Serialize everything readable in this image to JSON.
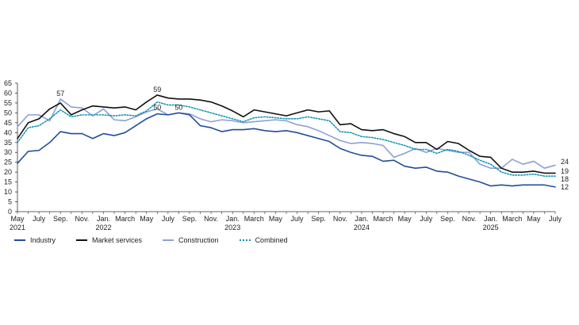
{
  "chart_data": {
    "type": "line",
    "ylim": [
      0,
      65
    ],
    "yticks": [
      0,
      5,
      10,
      15,
      20,
      25,
      30,
      35,
      40,
      45,
      50,
      55,
      60,
      65
    ],
    "grid": false,
    "legend_position": "bottom-left",
    "x_start": "2021-05",
    "x_months": 51,
    "x_tick_labels": [
      {
        "month": "2021-05",
        "lines": [
          "May",
          "2021"
        ]
      },
      {
        "month": "2021-07",
        "lines": [
          "July"
        ]
      },
      {
        "month": "2021-09",
        "lines": [
          "Sep."
        ]
      },
      {
        "month": "2021-11",
        "lines": [
          "Nov."
        ]
      },
      {
        "month": "2022-01",
        "lines": [
          "Jan.",
          "2022"
        ]
      },
      {
        "month": "2022-03",
        "lines": [
          "March"
        ]
      },
      {
        "month": "2022-05",
        "lines": [
          "May"
        ]
      },
      {
        "month": "2022-07",
        "lines": [
          "July"
        ]
      },
      {
        "month": "2022-09",
        "lines": [
          "Sep."
        ]
      },
      {
        "month": "2022-11",
        "lines": [
          "Nov."
        ]
      },
      {
        "month": "2023-01",
        "lines": [
          "Jan.",
          "2023"
        ]
      },
      {
        "month": "2023-03",
        "lines": [
          "March"
        ]
      },
      {
        "month": "2023-05",
        "lines": [
          "May"
        ]
      },
      {
        "month": "2023-07",
        "lines": [
          "July"
        ]
      },
      {
        "month": "2023-09",
        "lines": [
          "Sep."
        ]
      },
      {
        "month": "2023-11",
        "lines": [
          "Nov."
        ]
      },
      {
        "month": "2024-01",
        "lines": [
          "Jan.",
          "2024"
        ]
      },
      {
        "month": "2024-03",
        "lines": [
          "March"
        ]
      },
      {
        "month": "2024-05",
        "lines": [
          "May"
        ]
      },
      {
        "month": "2024-07",
        "lines": [
          "July"
        ]
      },
      {
        "month": "2024-09",
        "lines": [
          "Sep."
        ]
      },
      {
        "month": "2024-11",
        "lines": [
          "Nov."
        ]
      },
      {
        "month": "2025-01",
        "lines": [
          "Jan.",
          "2025"
        ]
      },
      {
        "month": "2025-03",
        "lines": [
          "March"
        ]
      },
      {
        "month": "2025-05",
        "lines": [
          "May"
        ]
      },
      {
        "month": "2025-07",
        "lines": [
          "July"
        ]
      }
    ],
    "series": [
      {
        "name": "Industry",
        "color": "#1f4e9c",
        "style": "solid",
        "values": [
          24.5,
          30.5,
          31,
          35,
          40.5,
          39.5,
          39.5,
          37,
          39.5,
          38.5,
          40,
          43.5,
          47,
          49.5,
          49,
          50,
          49,
          43.5,
          42.5,
          40.5,
          41.5,
          41.5,
          42,
          41,
          40.5,
          41,
          40,
          38.5,
          37,
          35.5,
          32,
          30,
          28.5,
          28,
          25.5,
          26,
          23,
          22,
          22.5,
          20.5,
          20,
          18,
          16.5,
          15,
          13,
          13.5,
          13,
          13.5,
          13.5,
          13.5,
          12.5
        ]
      },
      {
        "name": "Market services",
        "color": "#111111",
        "style": "solid",
        "values": [
          37,
          45,
          47,
          52,
          55,
          49,
          51.5,
          53.5,
          53,
          52.5,
          53,
          51.5,
          55.5,
          59,
          57.5,
          57,
          57,
          56.5,
          55.5,
          53.5,
          51,
          48,
          51.5,
          50.5,
          49.5,
          48.5,
          50,
          51.5,
          50.5,
          51,
          44,
          44.5,
          41.5,
          41,
          41.5,
          39.5,
          38,
          35,
          35,
          31.5,
          35.5,
          34.5,
          31,
          28,
          27.5,
          22,
          20,
          20,
          20.5,
          19.5,
          19.5
        ]
      },
      {
        "name": "Construction",
        "color": "#8e9fd5",
        "style": "solid",
        "values": [
          43,
          49,
          49,
          46,
          57,
          53,
          52.5,
          48.5,
          52,
          46.5,
          46,
          48,
          50.5,
          52,
          49,
          50,
          49.5,
          47,
          45.5,
          46.5,
          46,
          45,
          45.5,
          46,
          46.5,
          46,
          44,
          43,
          41,
          38.5,
          36,
          34.5,
          35,
          34.5,
          33.5,
          27.5,
          29.5,
          32,
          30,
          32,
          31,
          30,
          30,
          24,
          22,
          22,
          26.5,
          24,
          25.5,
          22,
          23.5
        ]
      },
      {
        "name": "Combined",
        "color": "#1493b4",
        "style": "dotted",
        "values": [
          35,
          42.5,
          43.5,
          47,
          51.5,
          48,
          49,
          49,
          49,
          48.5,
          49,
          48.5,
          51,
          55.5,
          54,
          54,
          53,
          51.5,
          50,
          48.5,
          47,
          45.5,
          47.5,
          48,
          47.5,
          47,
          47,
          48,
          47,
          46,
          40.5,
          40,
          38,
          37.5,
          36.5,
          35,
          33.5,
          31.5,
          31.5,
          29.5,
          31.5,
          30.5,
          28.5,
          26,
          24,
          20,
          18.5,
          18.5,
          19,
          18,
          18
        ]
      }
    ],
    "annotations": [
      {
        "text": "57",
        "month": "2021-09",
        "value": 57
      },
      {
        "text": "59",
        "month": "2022-06",
        "value": 59
      },
      {
        "text": "50",
        "month": "2022-06",
        "value": 50
      },
      {
        "text": "50",
        "month": "2022-08",
        "value": 50
      }
    ],
    "end_labels": [
      {
        "text": "24",
        "value": 24
      },
      {
        "text": "19",
        "value": 19
      },
      {
        "text": "18",
        "value": 18
      },
      {
        "text": "12",
        "value": 12
      }
    ]
  }
}
